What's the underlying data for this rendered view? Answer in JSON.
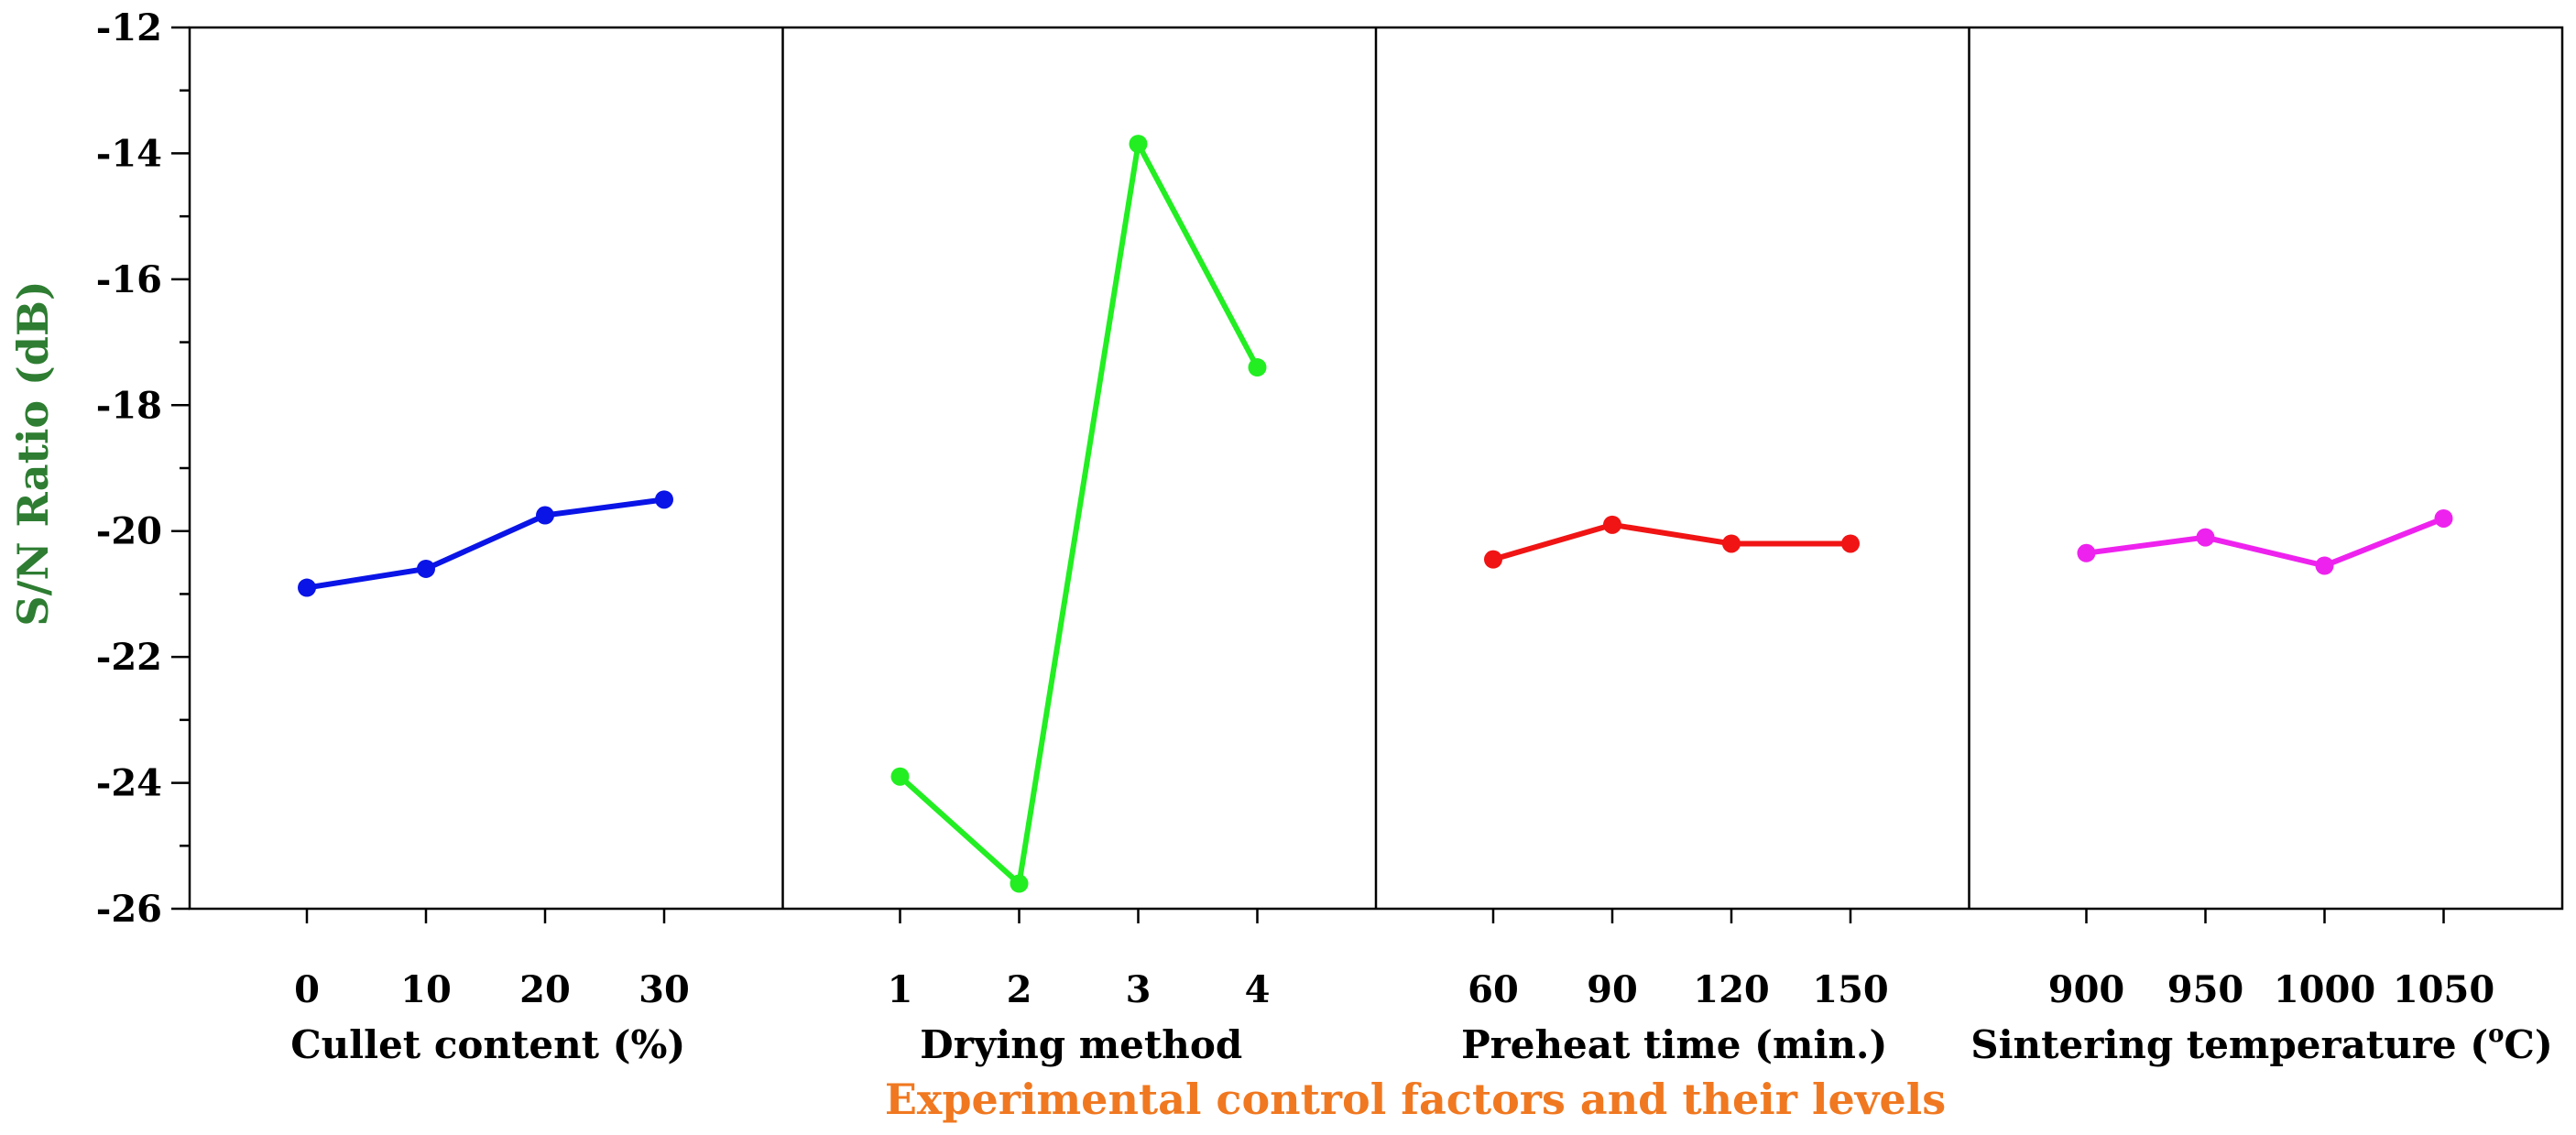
{
  "chart_data": {
    "type": "line",
    "title": "",
    "ylabel": "S/N Ratio (dB)",
    "xlabel": "Experimental control factors and their levels",
    "ylim": [
      -26,
      -12
    ],
    "yticks": [
      "-12",
      "-14",
      "-16",
      "-18",
      "-20",
      "-22",
      "-24",
      "-26"
    ],
    "colors": {
      "ylabel": "#2e7d32",
      "xlabel": "#f07820"
    },
    "panels": [
      {
        "name": "Cullet content (%)",
        "levels": [
          "0",
          "10",
          "20",
          "30"
        ],
        "values": [
          -20.9,
          -20.6,
          -19.75,
          -19.5
        ],
        "color": "#0a14e6"
      },
      {
        "name": "Drying method",
        "levels": [
          "1",
          "2",
          "3",
          "4"
        ],
        "values": [
          -23.9,
          -25.6,
          -13.85,
          -17.4
        ],
        "color": "#22ee22"
      },
      {
        "name": "Preheat time (min.)",
        "levels": [
          "60",
          "90",
          "120",
          "150"
        ],
        "values": [
          -20.45,
          -19.9,
          -20.2,
          -20.2
        ],
        "color": "#f01414"
      },
      {
        "name_main": "Sintering temperature (",
        "name_sup": "o",
        "name_tail": "C)",
        "levels": [
          "900",
          "950",
          "1000",
          "1050"
        ],
        "values": [
          -20.35,
          -20.1,
          -20.55,
          -19.8
        ],
        "color": "#ee22ee"
      }
    ]
  }
}
